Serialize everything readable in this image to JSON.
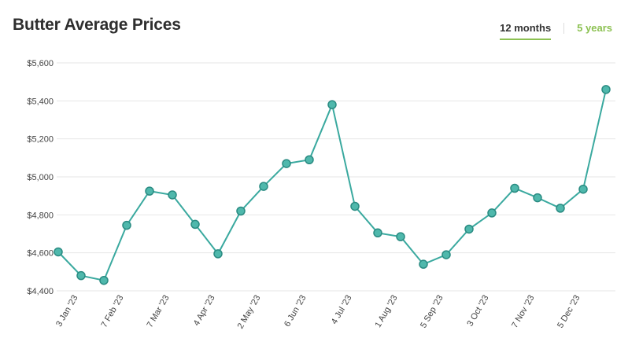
{
  "header": {
    "title": "Butter Average Prices",
    "tabs": [
      {
        "label": "12 months",
        "active": true
      },
      {
        "label": "5 years",
        "active": false
      }
    ]
  },
  "colors": {
    "line": "#3aa99f",
    "point_fill": "#4fb8ac",
    "point_stroke": "#2a8b82",
    "tab_accent": "#8cc152"
  },
  "chart_data": {
    "type": "line",
    "title": "Butter Average Prices",
    "xlabel": "",
    "ylabel": "",
    "ylim": [
      4400,
      5600
    ],
    "yticks": [
      4400,
      4600,
      4800,
      5000,
      5200,
      5400,
      5600
    ],
    "ytick_labels": [
      "$4,400",
      "$4,600",
      "$4,800",
      "$5,000",
      "$5,200",
      "$5,400",
      "$5,600"
    ],
    "grid": true,
    "x_tick_labels": [
      {
        "label": "3 Jan '23",
        "index": 1
      },
      {
        "label": "7 Feb '23",
        "index": 3
      },
      {
        "label": "7 Mar '23",
        "index": 5
      },
      {
        "label": "4 Apr '23",
        "index": 7
      },
      {
        "label": "2 May '23",
        "index": 9
      },
      {
        "label": "6 Jun '23",
        "index": 11
      },
      {
        "label": "4 Jul '23",
        "index": 13
      },
      {
        "label": "1 Aug '23",
        "index": 15
      },
      {
        "label": "5 Sep '23",
        "index": 17
      },
      {
        "label": "3 Oct '23",
        "index": 19
      },
      {
        "label": "7 Nov '23",
        "index": 21
      },
      {
        "label": "5 Dec '23",
        "index": 23
      }
    ],
    "series": [
      {
        "values": [
          4605,
          4480,
          4455,
          4745,
          4925,
          4905,
          4750,
          4595,
          4820,
          4950,
          5070,
          5090,
          5380,
          4845,
          4705,
          4685,
          4540,
          4590,
          4725,
          4810,
          4940,
          4890,
          4835,
          4935,
          5460
        ]
      }
    ]
  }
}
